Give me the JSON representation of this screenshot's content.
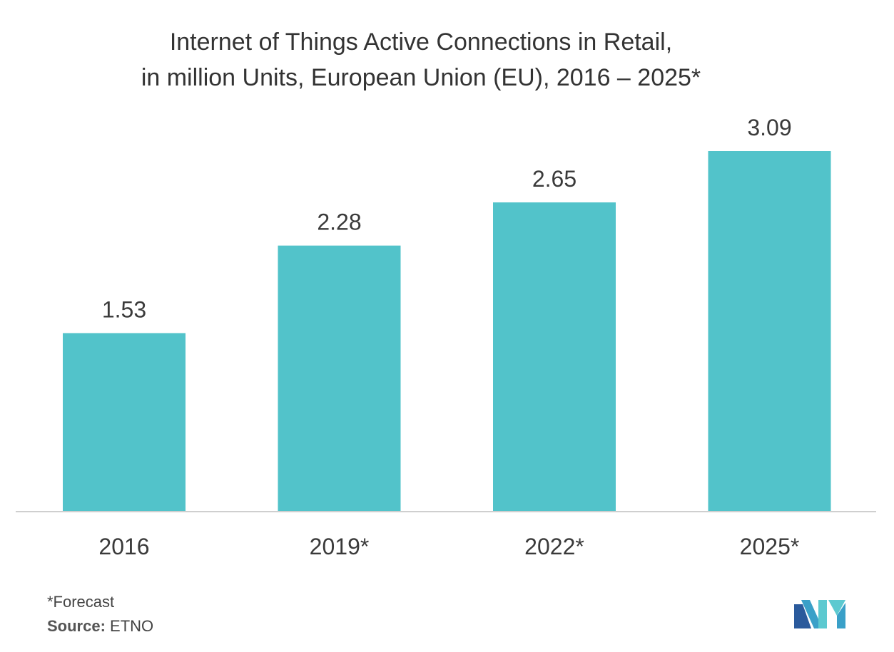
{
  "title_lines": [
    "Internet of Things Active Connections in Retail,",
    "in million Units, European Union (EU), 2016 – 2025*"
  ],
  "footnote": {
    "forecast": "*Forecast",
    "source_label": "Source:",
    "source_value": "ETNO"
  },
  "logo": {
    "icon": "mordor-intelligence-logo-icon",
    "colors": [
      "#2a5a9c",
      "#3aa0c8",
      "#5cc9d0"
    ]
  },
  "colors": {
    "bar": "#52c3ca",
    "axis": "#cfcfcf",
    "label": "#3a3a3a"
  },
  "chart_data": {
    "type": "bar",
    "categories": [
      "2016",
      "2019*",
      "2022*",
      "2025*"
    ],
    "values": [
      1.53,
      2.28,
      2.65,
      3.09
    ],
    "data_labels": [
      "1.53",
      "2.28",
      "2.65",
      "3.09"
    ],
    "ylim": [
      0,
      3.09
    ],
    "grid": false,
    "legend": "none"
  }
}
